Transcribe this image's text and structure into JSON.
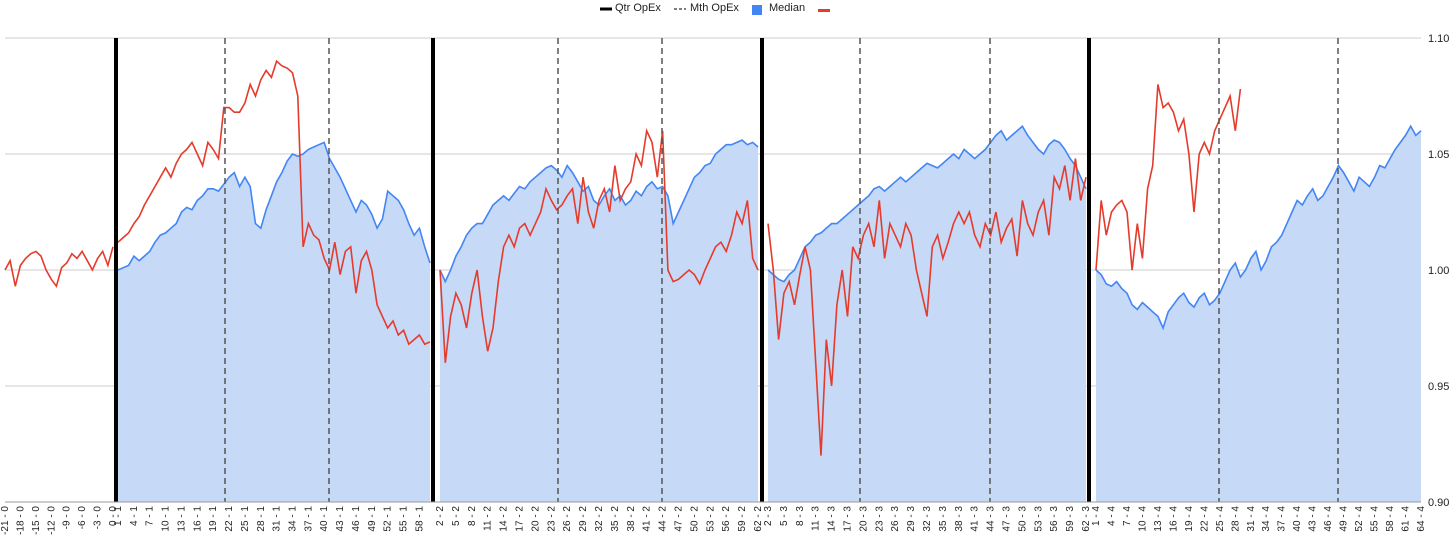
{
  "chart_data": {
    "type": "area",
    "legend": {
      "position": "top",
      "items": [
        {
          "name": "Qtr OpEx",
          "color": "#000000",
          "style": "solid"
        },
        {
          "name": "Mth OpEx",
          "color": "#555555",
          "style": "dashed"
        },
        {
          "name": "Median",
          "color": "#4285f4",
          "style": "area"
        },
        {
          "name": "",
          "color": "#e53b2c",
          "style": "line"
        }
      ]
    },
    "colors": {
      "area_fill": "#c6d9f7",
      "blue_line": "#4285f4",
      "red_line": "#e53b2c",
      "grid": "#cccccc",
      "solid_divider": "#000000",
      "dashed_divider": "#555555"
    },
    "y_axis": {
      "position": "right",
      "min": 0.9,
      "max": 1.1,
      "ticks": [
        "0.90",
        "0.95",
        "1.00",
        "1.05",
        "1.10"
      ],
      "grid": true
    },
    "x_axis": {
      "label_rotation": -90
    },
    "segments": [
      {
        "index": 0,
        "start": -21,
        "end": 0,
        "step": 1,
        "label_every": 3,
        "label_suffix": " - 0",
        "red": [
          1.0,
          1.004,
          0.993,
          1.002,
          1.005,
          1.007,
          1.008,
          1.006,
          1.0,
          0.996,
          0.993,
          1.001,
          1.003,
          1.007,
          1.005,
          1.008,
          1.004,
          1.0,
          1.005,
          1.008,
          1.002,
          1.01
        ]
      },
      {
        "index": 1,
        "start": 1,
        "end": 60,
        "step": 1,
        "label_every": 3,
        "label_suffix": " - 1",
        "blue": [
          1.0,
          1.001,
          1.002,
          1.006,
          1.004,
          1.006,
          1.008,
          1.012,
          1.015,
          1.016,
          1.018,
          1.02,
          1.025,
          1.027,
          1.026,
          1.03,
          1.032,
          1.035,
          1.035,
          1.034,
          1.037,
          1.04,
          1.042,
          1.036,
          1.04,
          1.036,
          1.02,
          1.018,
          1.026,
          1.032,
          1.038,
          1.042,
          1.047,
          1.05,
          1.049,
          1.05,
          1.052,
          1.053,
          1.054,
          1.055,
          1.048,
          1.044,
          1.04,
          1.035,
          1.03,
          1.025,
          1.03,
          1.028,
          1.024,
          1.018,
          1.022,
          1.034,
          1.032,
          1.03,
          1.026,
          1.02,
          1.015,
          1.018,
          1.01,
          1.003
        ],
        "red": [
          1.012,
          1.014,
          1.016,
          1.02,
          1.023,
          1.028,
          1.032,
          1.036,
          1.04,
          1.044,
          1.04,
          1.046,
          1.05,
          1.052,
          1.055,
          1.05,
          1.045,
          1.055,
          1.052,
          1.048,
          1.07,
          1.07,
          1.068,
          1.068,
          1.072,
          1.08,
          1.075,
          1.082,
          1.086,
          1.083,
          1.09,
          1.088,
          1.087,
          1.085,
          1.075,
          1.01,
          1.02,
          1.015,
          1.013,
          1.005,
          1.0,
          1.012,
          0.998,
          1.008,
          1.01,
          0.99,
          1.004,
          1.008,
          1.0,
          0.985,
          0.98,
          0.975,
          0.978,
          0.972,
          0.974,
          0.968,
          0.97,
          0.972,
          0.968,
          0.969
        ]
      },
      {
        "index": 2,
        "start": 2,
        "end": 62,
        "step": 1,
        "label_every": 3,
        "label_suffix": " - 2",
        "blue": [
          1.0,
          0.995,
          1.0,
          1.006,
          1.01,
          1.015,
          1.018,
          1.02,
          1.02,
          1.024,
          1.028,
          1.03,
          1.032,
          1.03,
          1.033,
          1.036,
          1.035,
          1.038,
          1.04,
          1.042,
          1.044,
          1.045,
          1.043,
          1.04,
          1.045,
          1.042,
          1.038,
          1.034,
          1.036,
          1.03,
          1.028,
          1.032,
          1.035,
          1.03,
          1.032,
          1.028,
          1.03,
          1.034,
          1.032,
          1.036,
          1.038,
          1.035,
          1.036,
          1.032,
          1.02,
          1.025,
          1.03,
          1.035,
          1.04,
          1.042,
          1.045,
          1.046,
          1.05,
          1.052,
          1.054,
          1.054,
          1.055,
          1.056,
          1.054,
          1.055,
          1.053
        ],
        "red": [
          1.0,
          0.96,
          0.98,
          0.99,
          0.985,
          0.975,
          0.99,
          1.0,
          0.98,
          0.965,
          0.975,
          0.995,
          1.01,
          1.015,
          1.01,
          1.018,
          1.02,
          1.015,
          1.02,
          1.025,
          1.035,
          1.03,
          1.026,
          1.028,
          1.032,
          1.035,
          1.02,
          1.04,
          1.025,
          1.018,
          1.03,
          1.035,
          1.025,
          1.045,
          1.03,
          1.035,
          1.038,
          1.05,
          1.045,
          1.06,
          1.055,
          1.04,
          1.06,
          1.0,
          0.995,
          0.996,
          0.998,
          1.0,
          0.998,
          0.994,
          1.0,
          1.005,
          1.01,
          1.012,
          1.008,
          1.015,
          1.025,
          1.02,
          1.03,
          1.005,
          1.0
        ]
      },
      {
        "index": 3,
        "start": 2,
        "end": 62,
        "step": 1,
        "label_every": 3,
        "label_suffix": " - 3",
        "blue": [
          1.0,
          0.998,
          0.996,
          0.995,
          0.998,
          1.0,
          1.005,
          1.01,
          1.012,
          1.015,
          1.016,
          1.018,
          1.02,
          1.02,
          1.022,
          1.024,
          1.026,
          1.028,
          1.03,
          1.032,
          1.035,
          1.036,
          1.034,
          1.036,
          1.038,
          1.04,
          1.038,
          1.04,
          1.042,
          1.044,
          1.046,
          1.045,
          1.044,
          1.046,
          1.048,
          1.05,
          1.048,
          1.052,
          1.05,
          1.048,
          1.05,
          1.052,
          1.055,
          1.058,
          1.06,
          1.056,
          1.058,
          1.06,
          1.062,
          1.058,
          1.055,
          1.052,
          1.05,
          1.054,
          1.056,
          1.055,
          1.052,
          1.048,
          1.045,
          1.04,
          1.035
        ],
        "red": [
          1.02,
          1.0,
          0.97,
          0.99,
          0.995,
          0.985,
          0.998,
          1.01,
          1.0,
          0.96,
          0.92,
          0.97,
          0.95,
          0.985,
          1.0,
          0.98,
          1.01,
          1.005,
          1.015,
          1.02,
          1.01,
          1.03,
          1.005,
          1.02,
          1.015,
          1.01,
          1.02,
          1.015,
          1.0,
          0.99,
          0.98,
          1.01,
          1.015,
          1.005,
          1.012,
          1.02,
          1.025,
          1.02,
          1.025,
          1.015,
          1.01,
          1.02,
          1.015,
          1.025,
          1.012,
          1.018,
          1.022,
          1.006,
          1.03,
          1.02,
          1.015,
          1.025,
          1.03,
          1.015,
          1.04,
          1.035,
          1.045,
          1.03,
          1.048,
          1.03,
          1.04
        ]
      },
      {
        "index": 4,
        "start": 1,
        "end": 64,
        "step": 1,
        "label_every": 3,
        "label_suffix": " - 4",
        "blue": [
          1.0,
          0.998,
          0.994,
          0.993,
          0.995,
          0.992,
          0.99,
          0.985,
          0.983,
          0.986,
          0.984,
          0.982,
          0.98,
          0.975,
          0.982,
          0.985,
          0.988,
          0.99,
          0.986,
          0.984,
          0.988,
          0.99,
          0.985,
          0.987,
          0.99,
          0.995,
          1.0,
          1.003,
          0.997,
          1.0,
          1.005,
          1.008,
          1.0,
          1.004,
          1.01,
          1.012,
          1.015,
          1.02,
          1.025,
          1.03,
          1.028,
          1.032,
          1.035,
          1.03,
          1.032,
          1.036,
          1.04,
          1.045,
          1.042,
          1.038,
          1.034,
          1.04,
          1.038,
          1.036,
          1.04,
          1.045,
          1.044,
          1.048,
          1.052,
          1.055,
          1.058,
          1.062,
          1.058,
          1.06
        ],
        "red": [
          1.0,
          1.03,
          1.015,
          1.025,
          1.028,
          1.03,
          1.025,
          1.0,
          1.02,
          1.005,
          1.035,
          1.045,
          1.08,
          1.07,
          1.072,
          1.068,
          1.06,
          1.065,
          1.05,
          1.025,
          1.05,
          1.055,
          1.05,
          1.06,
          1.065,
          1.07,
          1.075,
          1.06,
          1.078
        ]
      }
    ]
  }
}
